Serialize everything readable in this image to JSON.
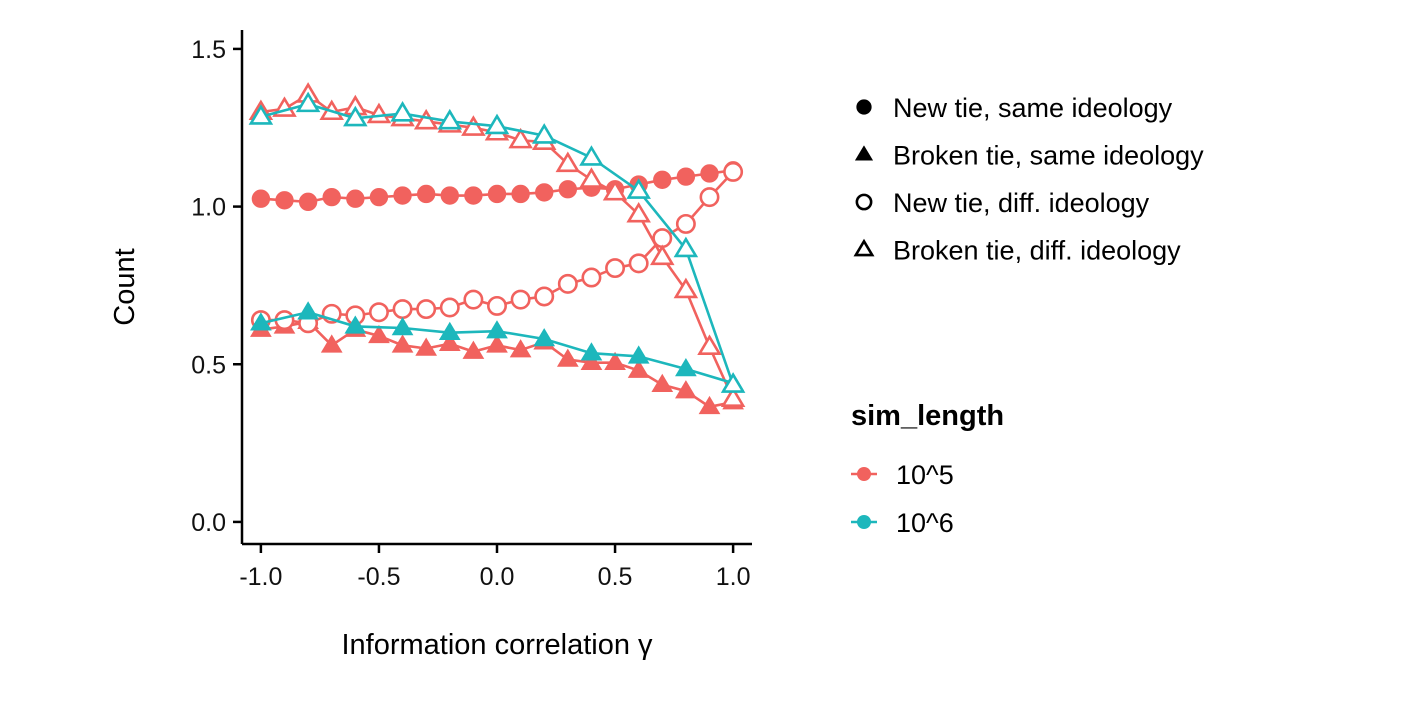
{
  "chart_data": {
    "type": "line",
    "xlabel": "Information correlation γ",
    "ylabel": "Count",
    "xlim": [
      -1.08,
      1.08
    ],
    "ylim": [
      -0.07,
      1.56
    ],
    "xticks": [
      -1.0,
      -0.5,
      0.0,
      0.5,
      1.0
    ],
    "xtick_labels": [
      "-1.0",
      "-0.5",
      "0.0",
      "0.5",
      "1.0"
    ],
    "yticks": [
      0.0,
      0.5,
      1.0,
      1.5
    ],
    "ytick_labels": [
      "0.0",
      "0.5",
      "1.0",
      "1.5"
    ],
    "shape_legend": {
      "items": [
        {
          "label": "New tie, same ideology",
          "shape": "filled-circle"
        },
        {
          "label": "Broken tie, same ideology",
          "shape": "filled-triangle"
        },
        {
          "label": "New tie, diff. ideology",
          "shape": "open-circle"
        },
        {
          "label": "Broken tie, diff. ideology",
          "shape": "open-triangle"
        }
      ]
    },
    "color_legend": {
      "title": "sim_length",
      "items": [
        {
          "label": "10^5",
          "color": "#F1625E"
        },
        {
          "label": "10^6",
          "color": "#1DB7BC"
        }
      ]
    },
    "series": [
      {
        "sim_length": "10^5",
        "type": "New tie, same ideology",
        "shape": "filled-circle",
        "color": "#F1625E",
        "x": [
          -1.0,
          -0.9,
          -0.8,
          -0.7,
          -0.6,
          -0.5,
          -0.4,
          -0.3,
          -0.2,
          -0.1,
          0.0,
          0.1,
          0.2,
          0.3,
          0.4,
          0.5,
          0.6,
          0.7,
          0.8,
          0.9,
          1.0
        ],
        "y": [
          1.025,
          1.02,
          1.015,
          1.03,
          1.025,
          1.03,
          1.035,
          1.04,
          1.035,
          1.035,
          1.04,
          1.04,
          1.045,
          1.055,
          1.06,
          1.055,
          1.07,
          1.085,
          1.095,
          1.105,
          1.115
        ]
      },
      {
        "sim_length": "10^5",
        "type": "Broken tie, same ideology",
        "shape": "filled-triangle",
        "color": "#F1625E",
        "x": [
          -1.0,
          -0.9,
          -0.8,
          -0.7,
          -0.6,
          -0.5,
          -0.4,
          -0.3,
          -0.2,
          -0.1,
          0.0,
          0.1,
          0.2,
          0.3,
          0.4,
          0.5,
          0.6,
          0.7,
          0.8,
          0.9,
          1.0
        ],
        "y": [
          0.61,
          0.62,
          0.635,
          0.56,
          0.61,
          0.59,
          0.56,
          0.55,
          0.565,
          0.54,
          0.56,
          0.545,
          0.57,
          0.515,
          0.505,
          0.505,
          0.48,
          0.435,
          0.415,
          0.365,
          0.38
        ]
      },
      {
        "sim_length": "10^5",
        "type": "New tie, diff. ideology",
        "shape": "open-circle",
        "color": "#F1625E",
        "x": [
          -1.0,
          -0.9,
          -0.8,
          -0.7,
          -0.6,
          -0.5,
          -0.4,
          -0.3,
          -0.2,
          -0.1,
          0.0,
          0.1,
          0.2,
          0.3,
          0.4,
          0.5,
          0.6,
          0.7,
          0.8,
          0.9,
          1.0
        ],
        "y": [
          0.64,
          0.64,
          0.63,
          0.66,
          0.655,
          0.665,
          0.675,
          0.675,
          0.68,
          0.705,
          0.685,
          0.705,
          0.715,
          0.755,
          0.775,
          0.805,
          0.82,
          0.9,
          0.945,
          1.03,
          1.11
        ]
      },
      {
        "sim_length": "10^5",
        "type": "Broken tie, diff. ideology",
        "shape": "open-triangle",
        "color": "#F1625E",
        "x": [
          -1.0,
          -0.9,
          -0.8,
          -0.7,
          -0.6,
          -0.5,
          -0.4,
          -0.3,
          -0.2,
          -0.1,
          0.0,
          0.1,
          0.2,
          0.3,
          0.4,
          0.5,
          0.6,
          0.7,
          0.8,
          0.9,
          1.0
        ],
        "y": [
          1.3,
          1.31,
          1.355,
          1.3,
          1.315,
          1.29,
          1.28,
          1.27,
          1.26,
          1.25,
          1.235,
          1.21,
          1.205,
          1.135,
          1.085,
          1.045,
          0.975,
          0.84,
          0.735,
          0.555,
          0.39
        ]
      },
      {
        "sim_length": "10^6",
        "type": "Broken tie, same ideology",
        "shape": "filled-triangle",
        "color": "#1DB7BC",
        "x": [
          -1.0,
          -0.8,
          -0.6,
          -0.4,
          -0.2,
          0.0,
          0.2,
          0.4,
          0.6,
          0.8,
          1.0
        ],
        "y": [
          0.63,
          0.665,
          0.62,
          0.615,
          0.6,
          0.605,
          0.58,
          0.535,
          0.525,
          0.485,
          0.44
        ]
      },
      {
        "sim_length": "10^6",
        "type": "Broken tie, diff. ideology",
        "shape": "open-triangle",
        "color": "#1DB7BC",
        "x": [
          -1.0,
          -0.8,
          -0.6,
          -0.4,
          -0.2,
          0.0,
          0.2,
          0.4,
          0.6,
          0.8,
          1.0
        ],
        "y": [
          1.285,
          1.325,
          1.28,
          1.295,
          1.27,
          1.255,
          1.225,
          1.155,
          1.05,
          0.865,
          0.435
        ]
      }
    ]
  }
}
